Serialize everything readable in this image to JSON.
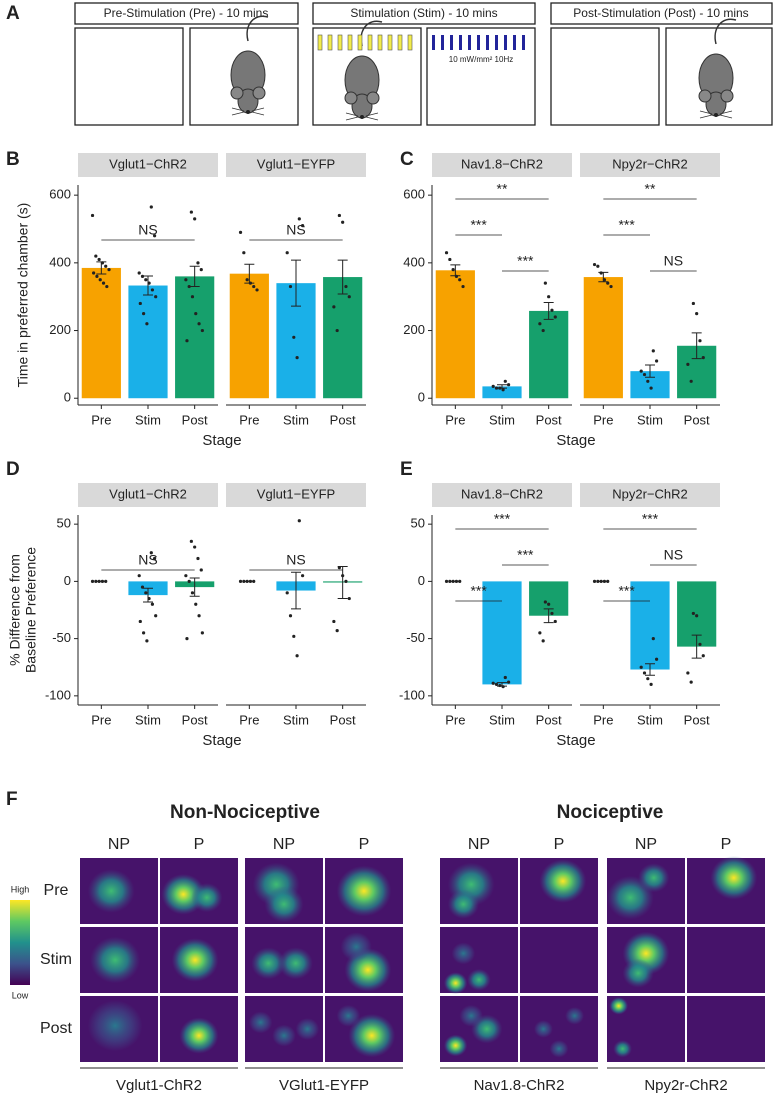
{
  "panel_labels": [
    "A",
    "B",
    "C",
    "D",
    "E",
    "F"
  ],
  "protocol": {
    "pre": "Pre-Stimulation (Pre) - 10 mins",
    "stim": "Stimulation (Stim) - 10 mins",
    "post": "Post-Stimulation (Post) - 10 mins",
    "light": "10 mW/mm² 10Hz"
  },
  "chart_data": [
    {
      "type": "bar",
      "ylabel": [
        "Time in preferred chamber (s)"
      ],
      "xlabel": "Stage",
      "categories": [
        "Pre",
        "Stim",
        "Post"
      ],
      "colors": [
        "#f7a200",
        "#1ab0e8",
        "#16a06c"
      ],
      "ylim": [
        -20,
        630
      ],
      "yticks": [
        0,
        200,
        400,
        600
      ],
      "facets": [
        {
          "title": "Vglut1−ChR2",
          "values": [
            385,
            333,
            360
          ],
          "errors": [
            18,
            28,
            30
          ],
          "points": [
            [
              540,
              420,
              410,
              400,
              390,
              380,
              370,
              360,
              350,
              340,
              330
            ],
            [
              565,
              480,
              370,
              360,
              350,
              340,
              320,
              300,
              280,
              250,
              220
            ],
            [
              550,
              530,
              400,
              380,
              350,
              330,
              300,
              250,
              220,
              200,
              170
            ]
          ],
          "comparisons": [
            {
              "between": [
                "Pre",
                "Post"
              ],
              "label": "NS"
            }
          ]
        },
        {
          "title": "Vglut1−EYFP",
          "values": [
            368,
            340,
            358
          ],
          "errors": [
            28,
            68,
            50
          ],
          "points": [
            [
              490,
              430,
              350,
              340,
              330,
              320
            ],
            [
              530,
              510,
              430,
              330,
              180,
              120
            ],
            [
              540,
              520,
              330,
              300,
              270,
              200
            ]
          ],
          "comparisons": [
            {
              "between": [
                "Pre",
                "Post"
              ],
              "label": "NS"
            }
          ]
        }
      ]
    },
    {
      "type": "bar",
      "xlabel": "Stage",
      "categories": [
        "Pre",
        "Stim",
        "Post"
      ],
      "colors": [
        "#f7a200",
        "#1ab0e8",
        "#16a06c"
      ],
      "ylim": [
        -20,
        630
      ],
      "yticks": [
        0,
        200,
        400,
        600
      ],
      "facets": [
        {
          "title": "Nav1.8−ChR2",
          "values": [
            378,
            35,
            258
          ],
          "errors": [
            16,
            5,
            25
          ],
          "points": [
            [
              430,
              410,
              380,
              360,
              350,
              330
            ],
            [
              50,
              40,
              35,
              30,
              30,
              25
            ],
            [
              340,
              300,
              260,
              240,
              220,
              200
            ]
          ],
          "comparisons": [
            {
              "between": [
                "Pre",
                "Post"
              ],
              "label": "**"
            },
            {
              "between": [
                "Pre",
                "Stim"
              ],
              "label": "***"
            },
            {
              "between": [
                "Stim",
                "Post"
              ],
              "label": "***"
            }
          ]
        },
        {
          "title": "Npy2r−ChR2",
          "values": [
            358,
            80,
            155
          ],
          "errors": [
            14,
            18,
            38
          ],
          "points": [
            [
              395,
              390,
              370,
              350,
              340,
              330
            ],
            [
              140,
              110,
              80,
              70,
              50,
              30
            ],
            [
              280,
              250,
              170,
              120,
              100,
              50
            ]
          ],
          "comparisons": [
            {
              "between": [
                "Pre",
                "Post"
              ],
              "label": "**"
            },
            {
              "between": [
                "Pre",
                "Stim"
              ],
              "label": "***"
            },
            {
              "between": [
                "Stim",
                "Post"
              ],
              "label": "NS"
            }
          ]
        }
      ]
    },
    {
      "type": "bar",
      "ylabel": [
        "% Difference from",
        "Baseline Preference"
      ],
      "xlabel": "Stage",
      "categories": [
        "Pre",
        "Stim",
        "Post"
      ],
      "colors": [
        "#f7a200",
        "#1ab0e8",
        "#16a06c"
      ],
      "ylim": [
        -108,
        58
      ],
      "yticks": [
        -100,
        -50,
        0,
        50
      ],
      "facets": [
        {
          "title": "Vglut1−ChR2",
          "values": [
            0,
            -12,
            -5
          ],
          "errors": [
            0,
            6,
            8
          ],
          "points": [
            [
              0,
              0,
              0,
              0,
              0
            ],
            [
              25,
              20,
              5,
              -5,
              -10,
              -15,
              -20,
              -30,
              -35,
              -45,
              -52
            ],
            [
              35,
              30,
              20,
              10,
              5,
              0,
              -10,
              -20,
              -30,
              -45,
              -50
            ]
          ],
          "comparisons": [
            {
              "between": [
                "Pre",
                "Post"
              ],
              "label": "NS"
            }
          ]
        },
        {
          "title": "Vglut1−EYFP",
          "values": [
            0,
            -8,
            -1
          ],
          "errors": [
            0,
            16,
            14
          ],
          "points": [
            [
              0,
              0,
              0,
              0,
              0
            ],
            [
              53,
              5,
              -10,
              -30,
              -48,
              -65
            ],
            [
              12,
              5,
              0,
              -15,
              -35,
              -43
            ]
          ],
          "comparisons": [
            {
              "between": [
                "Pre",
                "Post"
              ],
              "label": "NS"
            }
          ]
        }
      ]
    },
    {
      "type": "bar",
      "xlabel": "Stage",
      "categories": [
        "Pre",
        "Stim",
        "Post"
      ],
      "colors": [
        "#f7a200",
        "#1ab0e8",
        "#16a06c"
      ],
      "ylim": [
        -108,
        58
      ],
      "yticks": [
        -100,
        -50,
        0,
        50
      ],
      "facets": [
        {
          "title": "Nav1.8−ChR2",
          "values": [
            0,
            -90,
            -30
          ],
          "errors": [
            0,
            1.5,
            6
          ],
          "points": [
            [
              0,
              0,
              0,
              0,
              0
            ],
            [
              -84,
              -88,
              -89,
              -90,
              -91,
              -92
            ],
            [
              -18,
              -20,
              -28,
              -35,
              -45,
              -52
            ]
          ],
          "comparisons": [
            {
              "between": [
                "Pre",
                "Post"
              ],
              "label": "***"
            },
            {
              "between": [
                "Stim",
                "Post"
              ],
              "label": "***"
            },
            {
              "between": [
                "Pre",
                "Stim"
              ],
              "label": "***"
            }
          ]
        },
        {
          "title": "Npy2r−ChR2",
          "values": [
            0,
            -77,
            -57
          ],
          "errors": [
            0,
            5,
            10
          ],
          "points": [
            [
              0,
              0,
              0,
              0,
              0
            ],
            [
              -50,
              -68,
              -75,
              -80,
              -85,
              -90
            ],
            [
              -28,
              -30,
              -55,
              -65,
              -80,
              -88
            ]
          ],
          "comparisons": [
            {
              "between": [
                "Pre",
                "Post"
              ],
              "label": "***"
            },
            {
              "between": [
                "Stim",
                "Post"
              ],
              "label": "NS"
            },
            {
              "between": [
                "Pre",
                "Stim"
              ],
              "label": "***"
            }
          ]
        }
      ]
    }
  ],
  "heatmaps": {
    "title_left": "Non-Nociceptive",
    "title_right": "Nociceptive",
    "columns": [
      "NP",
      "P"
    ],
    "rows": [
      "Pre",
      "Stim",
      "Post"
    ],
    "scale": [
      "High",
      "Low"
    ],
    "groups": [
      "Vglut1-ChR2",
      "VGlut1-EYFP",
      "Nav1.8-ChR2",
      "Npy2r-ChR2"
    ]
  }
}
